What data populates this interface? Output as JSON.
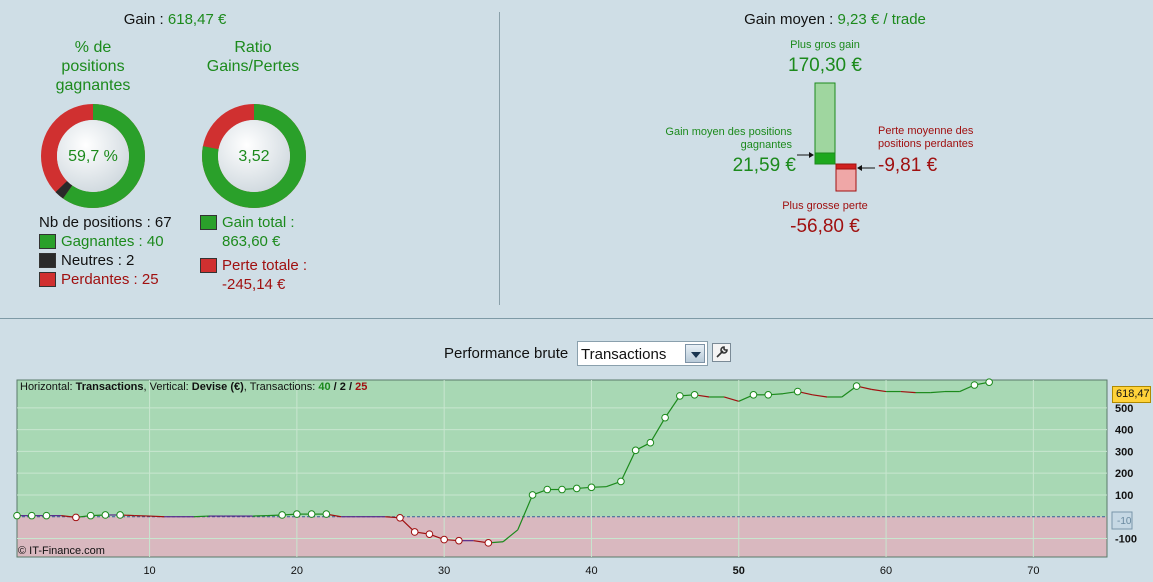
{
  "left_panel": {
    "gain_label": "Gain :",
    "gain_value": "618,47 €",
    "pct_title": [
      "% de",
      "positions",
      "gagnantes"
    ],
    "pct_value": "59,7 %",
    "ratio_title": [
      "Ratio",
      "Gains/Pertes"
    ],
    "ratio_value": "3,52",
    "win_fraction": 0.597,
    "neutral_fraction": 0.03,
    "ratio_fraction": 0.779,
    "nb_positions": "Nb de positions : 67",
    "gagnantes": "Gagnantes : 40",
    "neutres": "Neutres : 2",
    "perdantes": "Perdantes : 25",
    "gain_total_label": "Gain total :",
    "gain_total_value": "863,60 €",
    "perte_totale_label": "Perte totale :",
    "perte_totale_value": "-245,14 €"
  },
  "right_panel": {
    "gain_moyen_label": "Gain moyen :",
    "gain_moyen_value": "9,23 € / trade",
    "plus_gros_gain_label": "Plus gros gain",
    "plus_gros_gain_value": "170,30 €",
    "gain_moyen_pos_label": [
      "Gain moyen des positions",
      "gagnantes"
    ],
    "gain_moyen_pos_value": "21,59 €",
    "perte_moyenne_label": [
      "Perte moyenne des",
      "positions perdantes"
    ],
    "perte_moyenne_value": "-9,81 €",
    "plus_grosse_perte_label": "Plus grosse perte",
    "plus_grosse_perte_value": "-56,80 €"
  },
  "toolbar": {
    "perf_label": "Performance brute",
    "select_value": "Transactions"
  },
  "chart_header": {
    "h_label": "Horizontal: ",
    "h_value": "Transactions",
    "v_label": ", Vertical: ",
    "v_value": "Devise (€)",
    "t_label": ", Transactions: ",
    "t_win": "40",
    "t_sep1": " / ",
    "t_neutral": "2",
    "t_sep2": " / ",
    "t_loss": "25"
  },
  "copyright": "© IT-Finance.com",
  "last_value_tag": "618,47",
  "zero_tag": "-10",
  "colors": {
    "background": "#cfdee6",
    "positive_zone": "#a8d8b4",
    "negative_zone": "#d9b8bf",
    "win_green": "#1c8a1c",
    "loss_red": "#a01010",
    "value_tag": "#ffd23a"
  },
  "chart_data": {
    "type": "line",
    "title": "",
    "xlabel": "",
    "ylabel": "",
    "xlim": [
      1,
      75
    ],
    "ylim": [
      -185,
      628
    ],
    "x_ticks": [
      10,
      20,
      30,
      40,
      50,
      60,
      70
    ],
    "x_ticks_bold": [
      50
    ],
    "y_ticks": [
      -100,
      100,
      200,
      300,
      400,
      500
    ],
    "series": [
      {
        "x": [
          1,
          2,
          3,
          4,
          5,
          6,
          7,
          8,
          9,
          10,
          11,
          12,
          13,
          14,
          15,
          16,
          17,
          18,
          19,
          20,
          21,
          22,
          23,
          24,
          25,
          26,
          27,
          28,
          29,
          30,
          31,
          32,
          33,
          34,
          35,
          36,
          37,
          38,
          39,
          40,
          41,
          42,
          43,
          44,
          45,
          46,
          47,
          48,
          49,
          50,
          51,
          52,
          53,
          54,
          55,
          56,
          57,
          58,
          59,
          60,
          61,
          62,
          63,
          64,
          65,
          66,
          67
        ],
        "y": [
          5,
          5,
          5,
          5,
          -3,
          5,
          8,
          8,
          5,
          3,
          0,
          0,
          0,
          3,
          3,
          3,
          3,
          5,
          8,
          12,
          12,
          12,
          0,
          0,
          0,
          0,
          -5,
          -70,
          -80,
          -105,
          -110,
          -110,
          -120,
          -115,
          -60,
          100,
          125,
          125,
          130,
          135,
          138,
          162,
          305,
          340,
          455,
          555,
          560,
          550,
          550,
          530,
          560,
          560,
          565,
          575,
          560,
          550,
          550,
          600,
          585,
          575,
          575,
          570,
          570,
          575,
          575,
          605,
          618
        ],
        "markers": [
          1,
          2,
          3,
          5,
          6,
          7,
          8,
          19,
          20,
          21,
          22,
          27,
          28,
          29,
          30,
          31,
          33,
          36,
          37,
          38,
          39,
          40,
          42,
          43,
          44,
          45,
          46,
          47,
          51,
          52,
          54,
          58,
          66,
          67
        ]
      }
    ]
  }
}
